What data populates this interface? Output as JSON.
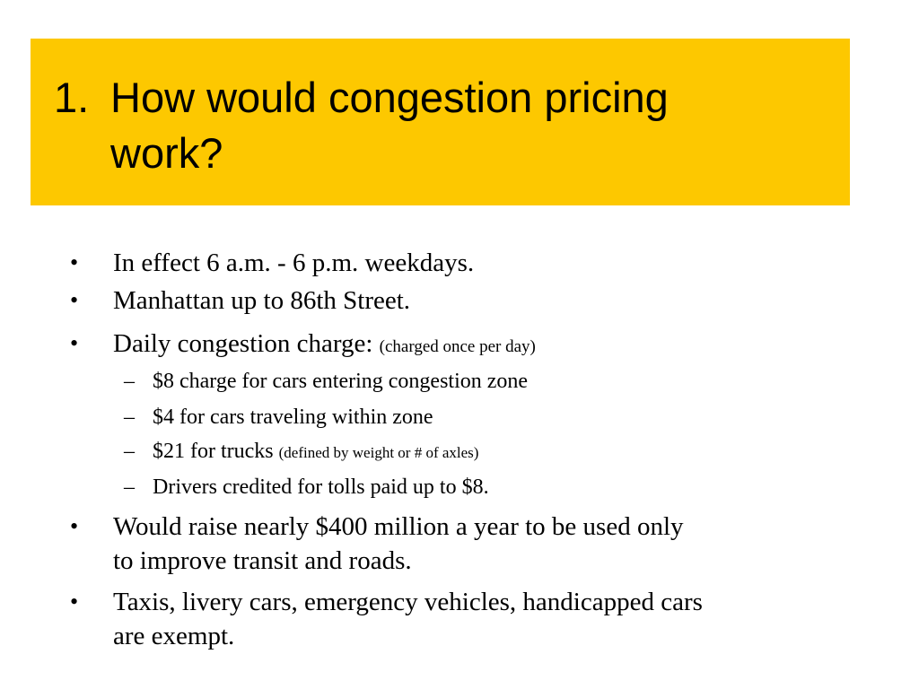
{
  "slide": {
    "title_number": "1.",
    "title_line1": "How would congestion pricing",
    "title_line2": "work?",
    "bullet_char": "•",
    "dash_char": "–",
    "bullets": [
      {
        "text": "In effect 6 a.m. - 6 p.m. weekdays."
      },
      {
        "text": "Manhattan up to 86th Street."
      },
      {
        "text": "Daily congestion charge:",
        "note": "(charged once per day)"
      },
      {
        "text": "Would raise nearly $400 million a year to be used only",
        "text2": "to improve transit and roads."
      },
      {
        "text": "Taxis, livery cars, emergency vehicles, handicapped cars",
        "text2": "are exempt."
      }
    ],
    "sub_bullets": [
      {
        "text": "$8 charge for cars entering congestion zone"
      },
      {
        "text": "$4 for cars traveling within zone"
      },
      {
        "text": "$21 for trucks",
        "note": "(defined by weight or # of axles)"
      },
      {
        "text": "Drivers credited for tolls paid up to $8."
      }
    ],
    "colors": {
      "title_background": "#fdc800",
      "background": "#ffffff",
      "text": "#000000"
    }
  }
}
